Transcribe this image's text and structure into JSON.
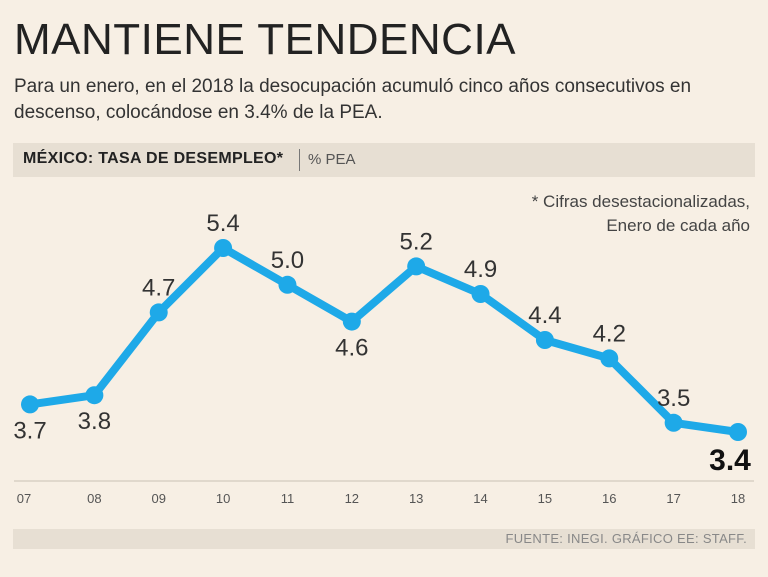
{
  "header": {
    "title": "MANTIENE TENDENCIA",
    "subtitle": "Para un enero, en el 2018 la desocupación acumuló cinco años consecutivos en descenso, colocándose en 3.4% de la PEA."
  },
  "band": {
    "title": "MÉXICO: TASA DE DESEMPLEO*",
    "unit": "% PEA"
  },
  "note": {
    "line1": "* Cifras desestacionalizadas,",
    "line2": "Enero de cada año"
  },
  "footer": {
    "source": "FUENTE: INEGI. GRÁFICO EE: STAFF."
  },
  "colors": {
    "line": "#1ea9e8",
    "background": "#f7efe4",
    "band": "#e7dfd3"
  },
  "chart_data": {
    "type": "line",
    "title": "MÉXICO: TASA DE DESEMPLEO*",
    "ylabel": "% PEA",
    "xlabel": "",
    "categories": [
      "07",
      "08",
      "09",
      "10",
      "11",
      "12",
      "13",
      "14",
      "15",
      "16",
      "17",
      "18"
    ],
    "series": [
      {
        "name": "Tasa de desempleo",
        "values": [
          3.7,
          3.8,
          4.7,
          5.4,
          5.0,
          4.6,
          5.2,
          4.9,
          4.4,
          4.2,
          3.5,
          3.4
        ],
        "labels": [
          "3.7",
          "3.8",
          "4.7",
          "5.4",
          "5.0",
          "4.6",
          "5.2",
          "4.9",
          "4.4",
          "4.2",
          "3.5",
          "3.4"
        ]
      }
    ],
    "ylim": [
      3.1,
      5.6
    ],
    "grid": false
  }
}
